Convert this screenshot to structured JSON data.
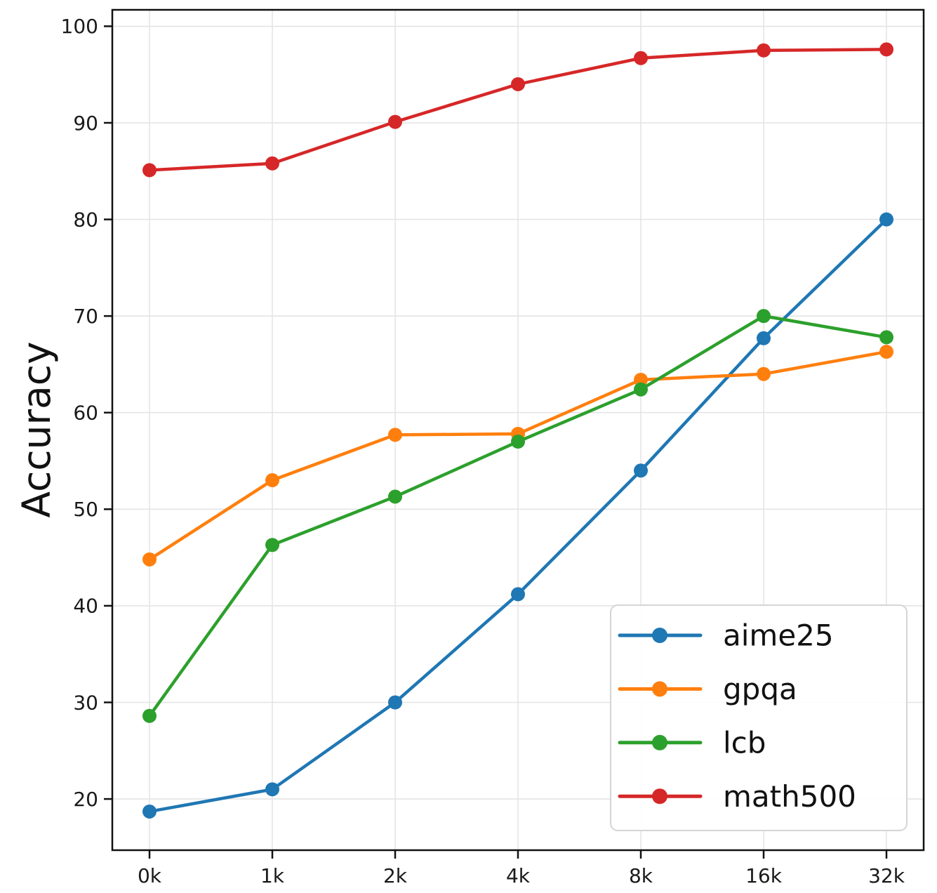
{
  "figure": {
    "ylabel": "Accuracy"
  },
  "chart_data": {
    "type": "line",
    "title": "",
    "xlabel": "",
    "ylabel": "Accuracy",
    "categories": [
      "0k",
      "1k",
      "2k",
      "4k",
      "8k",
      "16k",
      "32k"
    ],
    "series": [
      {
        "name": "aime25",
        "color": "#1f77b4",
        "values": [
          18.7,
          21.0,
          30.0,
          41.2,
          54.0,
          67.7,
          80.0
        ]
      },
      {
        "name": "gpqa",
        "color": "#ff7f0e",
        "values": [
          44.8,
          53.0,
          57.7,
          57.8,
          63.4,
          64.0,
          66.3
        ]
      },
      {
        "name": "lcb",
        "color": "#2ca02c",
        "values": [
          28.6,
          46.3,
          51.3,
          57.0,
          62.4,
          70.0,
          67.8
        ]
      },
      {
        "name": "math500",
        "color": "#d62728",
        "values": [
          85.1,
          85.8,
          90.1,
          94.0,
          96.7,
          97.5,
          97.6
        ]
      }
    ],
    "yticks": [
      20,
      30,
      40,
      50,
      60,
      70,
      80,
      90,
      100
    ],
    "ylim": [
      14.7,
      101.7
    ],
    "grid": true,
    "legend_position": "lower right",
    "marker": "circle",
    "styles": {
      "grid_color": "#e4e4e4",
      "spine_color": "#111111",
      "tick_label_color": "#1a1a1a",
      "legend_border_color": "#d5d5d5",
      "background": "#ffffff"
    }
  }
}
